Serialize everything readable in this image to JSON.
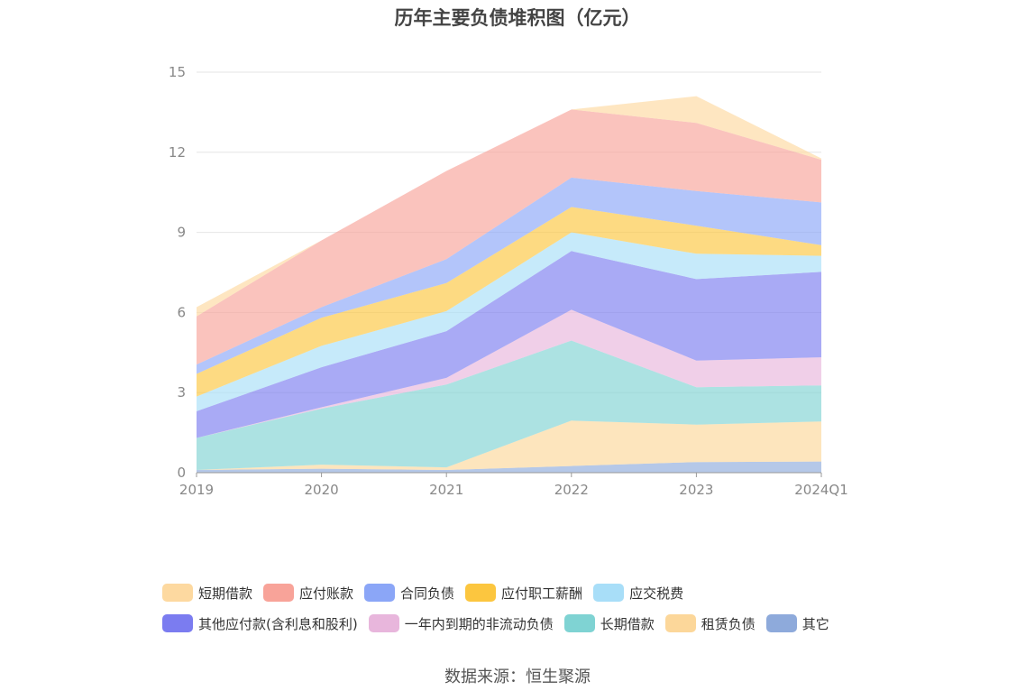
{
  "chart_data": {
    "type": "area",
    "stacked": true,
    "title": "历年主要负债堆积图（亿元）",
    "xlabel": "",
    "ylabel": "",
    "categories": [
      "2019",
      "2020",
      "2021",
      "2022",
      "2023",
      "2024Q1"
    ],
    "ylim": [
      0,
      15
    ],
    "yticks": [
      0,
      3,
      6,
      9,
      12,
      15
    ],
    "grid": true,
    "legend_position": "bottom",
    "series": [
      {
        "name": "其它",
        "color": "#8eaadb",
        "values": [
          0.1,
          0.15,
          0.1,
          0.25,
          0.4,
          0.42
        ]
      },
      {
        "name": "租赁负债",
        "color": "#fcd79a",
        "values": [
          0.0,
          0.15,
          0.1,
          1.7,
          1.4,
          1.5
        ]
      },
      {
        "name": "长期借款",
        "color": "#7fd3d3",
        "values": [
          1.2,
          2.1,
          3.1,
          3.0,
          1.4,
          1.35
        ]
      },
      {
        "name": "一年内到期的非流动负债",
        "color": "#e8b6dc",
        "values": [
          0.0,
          0.05,
          0.25,
          1.15,
          1.0,
          1.05
        ]
      },
      {
        "name": "其他应付款(含利息和股利)",
        "color": "#7b7cf0",
        "values": [
          1.0,
          1.5,
          1.75,
          2.2,
          3.05,
          3.2
        ]
      },
      {
        "name": "应交税费",
        "color": "#a8def8",
        "values": [
          0.55,
          0.8,
          0.75,
          0.7,
          0.95,
          0.6
        ]
      },
      {
        "name": "应付职工薪酬",
        "color": "#fcc63f",
        "values": [
          0.85,
          1.05,
          1.05,
          0.95,
          1.05,
          0.4
        ]
      },
      {
        "name": "合同负债",
        "color": "#8ba6f7",
        "values": [
          0.35,
          0.4,
          0.9,
          1.1,
          1.3,
          1.6
        ]
      },
      {
        "name": "应付账款",
        "color": "#f8a399",
        "values": [
          1.8,
          2.5,
          3.3,
          2.55,
          2.55,
          1.6
        ]
      },
      {
        "name": "短期借款",
        "color": "#fdd9a0",
        "values": [
          0.35,
          0.0,
          0.0,
          0.0,
          1.0,
          0.05
        ]
      }
    ],
    "legend": [
      [
        "短期借款",
        "应付账款",
        "合同负债",
        "应付职工薪酬",
        "应交税费"
      ],
      [
        "其他应付款(含利息和股利)",
        "一年内到期的非流动负债",
        "长期借款",
        "租赁负债",
        "其它"
      ]
    ],
    "legend_colors": {
      "短期借款": "#fdd9a0",
      "应付账款": "#f8a399",
      "合同负债": "#8ba6f7",
      "应付职工薪酬": "#fcc63f",
      "应交税费": "#a8def8",
      "其他应付款(含利息和股利)": "#7b7cf0",
      "一年内到期的非流动负债": "#e8b6dc",
      "长期借款": "#7fd3d3",
      "租赁负债": "#fcd79a",
      "其它": "#8eaadb"
    }
  },
  "source": "数据来源：恒生聚源"
}
